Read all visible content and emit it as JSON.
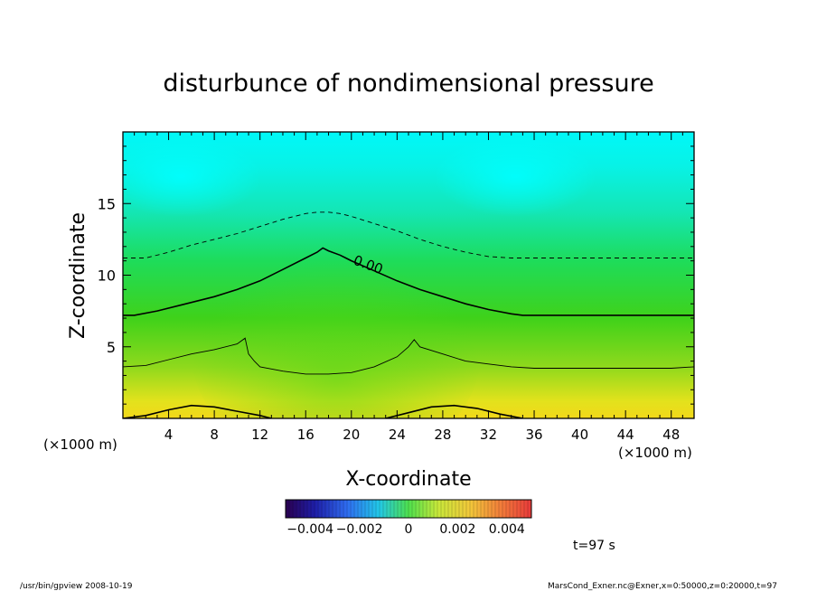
{
  "chart_data": {
    "type": "heatmap",
    "title": "disturbunce of nondimensional pressure",
    "xlabel": "X-coordinate",
    "ylabel": "Z-coordinate",
    "x_unit": "(×1000 m)",
    "z_unit": "(×1000 m)",
    "xlim": [
      0,
      50
    ],
    "ylim": [
      0,
      20
    ],
    "x_ticks": [
      4,
      8,
      12,
      16,
      20,
      24,
      28,
      32,
      36,
      40,
      44,
      48
    ],
    "y_ticks": [
      5,
      10,
      15
    ],
    "colorbar": {
      "range": [
        -0.005,
        0.005
      ],
      "tick_values": [
        -0.004,
        -0.002,
        0,
        0.002,
        0.004
      ],
      "tick_labels": [
        "−0.004",
        "−0.002",
        "0",
        "0.002",
        "0.004"
      ]
    },
    "contour_label": "0.00",
    "contours": [
      {
        "level": "negative",
        "style": "dashed",
        "x": [
          0,
          2,
          4,
          6,
          8,
          10,
          12,
          14,
          16,
          17,
          18,
          19,
          20,
          22,
          24,
          26,
          28,
          30,
          32,
          34,
          36,
          40,
          44,
          48,
          50
        ],
        "z": [
          11.2,
          11.2,
          11.6,
          12.1,
          12.5,
          12.9,
          13.4,
          13.9,
          14.3,
          14.4,
          14.4,
          14.3,
          14.1,
          13.6,
          13.1,
          12.5,
          12.0,
          11.6,
          11.3,
          11.2,
          11.2,
          11.2,
          11.2,
          11.2,
          11.2
        ]
      },
      {
        "level": "zero",
        "style": "solid-thick",
        "x": [
          0,
          1,
          3,
          5,
          8,
          10,
          12,
          14,
          16,
          17,
          17.5,
          18,
          19,
          20,
          22,
          24,
          26,
          28,
          30,
          32,
          34,
          35,
          38,
          42,
          46,
          50
        ],
        "z": [
          7.2,
          7.2,
          7.5,
          7.9,
          8.5,
          9.0,
          9.6,
          10.4,
          11.2,
          11.6,
          11.9,
          11.7,
          11.4,
          11.0,
          10.3,
          9.6,
          9.0,
          8.5,
          8.0,
          7.6,
          7.3,
          7.2,
          7.2,
          7.2,
          7.2,
          7.2
        ]
      },
      {
        "level": "positive",
        "style": "solid-thin",
        "x": [
          0,
          2,
          4,
          6,
          8,
          10,
          10.7,
          11,
          11.5,
          12,
          14,
          16,
          18,
          20,
          22,
          24,
          25,
          25.5,
          26,
          28,
          30,
          32,
          34,
          36,
          38,
          40,
          44,
          48,
          50
        ],
        "z": [
          3.6,
          3.7,
          4.1,
          4.5,
          4.8,
          5.2,
          5.6,
          4.5,
          4.0,
          3.6,
          3.3,
          3.1,
          3.1,
          3.2,
          3.6,
          4.3,
          5.0,
          5.5,
          5.0,
          4.5,
          4.0,
          3.8,
          3.6,
          3.5,
          3.5,
          3.5,
          3.5,
          3.5,
          3.6
        ]
      },
      {
        "level": "positive",
        "style": "solid-thick",
        "x": [
          0,
          2,
          4,
          6,
          8,
          10,
          12,
          13
        ],
        "z": [
          0,
          0.2,
          0.6,
          0.9,
          0.8,
          0.5,
          0.2,
          0
        ]
      },
      {
        "level": "positive",
        "style": "solid-thick",
        "x": [
          23,
          25,
          27,
          29,
          31,
          33,
          35
        ],
        "z": [
          0,
          0.4,
          0.8,
          0.9,
          0.7,
          0.3,
          0
        ]
      }
    ],
    "time_label": "t=97 s"
  },
  "footer": {
    "left": "/usr/bin/gpview   2008-10-19",
    "right": "MarsCond_Exner.nc@Exner,x=0:50000,z=0:20000,t=97"
  }
}
